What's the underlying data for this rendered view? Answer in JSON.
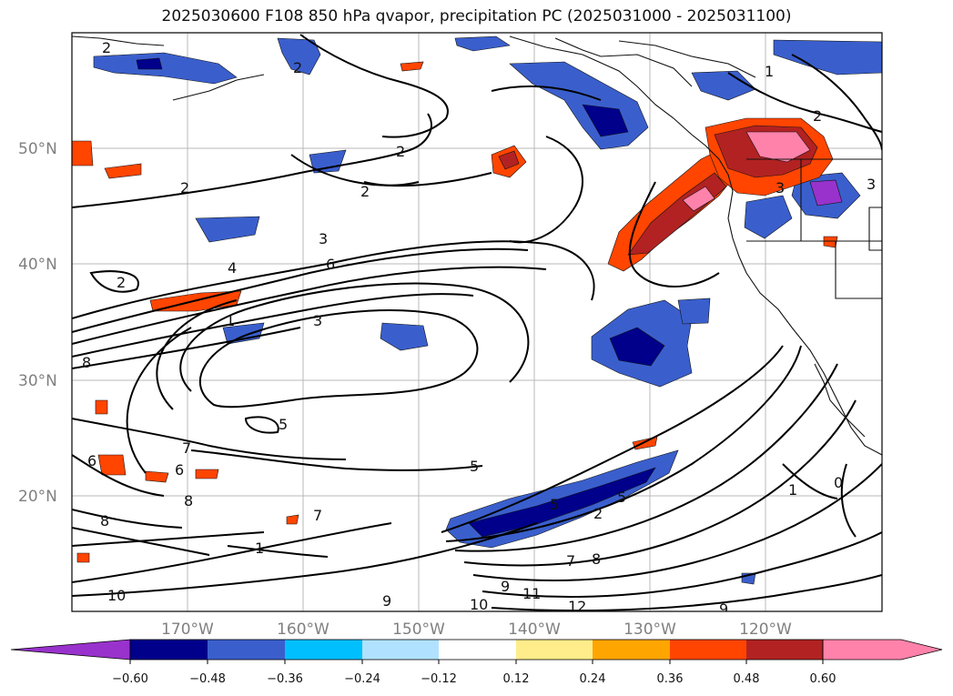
{
  "title": "2025030600 F108 850 hPa qvapor, precipitation PC (2025031000 - 2025031100)",
  "map": {
    "lon_labels": [
      "170°W",
      "160°W",
      "150°W",
      "140°W",
      "130°W",
      "120°W"
    ],
    "lat_labels": [
      "50°N",
      "40°N",
      "30°N",
      "20°N"
    ],
    "contour_labels": [
      "2",
      "2",
      "2",
      "2",
      "1",
      "2",
      "3",
      "6",
      "4",
      "3",
      "1",
      "2",
      "8",
      "7",
      "5",
      "6",
      "6",
      "8",
      "8",
      "7",
      "1",
      "5",
      "5",
      "2",
      "5",
      "7",
      "8",
      "9",
      "10",
      "11",
      "12",
      "10",
      "9",
      "9",
      "1",
      "0",
      "3",
      "3",
      "2"
    ]
  },
  "colorbar": {
    "ticks": [
      "−0.60",
      "−0.48",
      "−0.36",
      "−0.24",
      "−0.12",
      "0.12",
      "0.24",
      "0.36",
      "0.48",
      "0.60"
    ],
    "colors": [
      "#9932CC",
      "#00008B",
      "#3A5FCD",
      "#00BFFF",
      "#B0E2FF",
      "#FFFFFF",
      "#FFEC8B",
      "#FFA500",
      "#FF4500",
      "#B22222",
      "#FF82AB"
    ]
  }
}
